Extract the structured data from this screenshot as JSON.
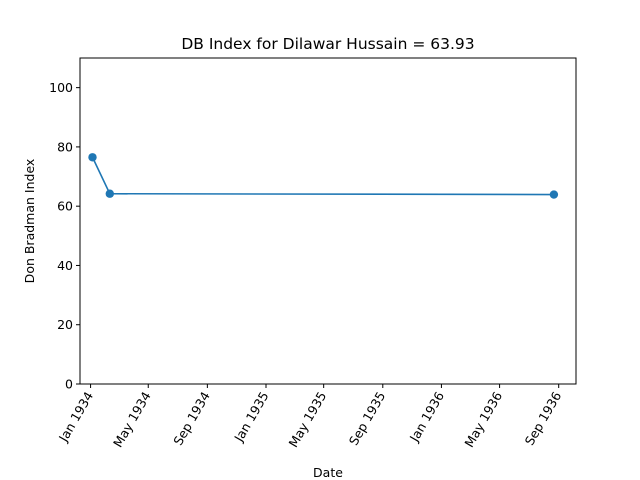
{
  "chart_data": {
    "type": "line",
    "title": "DB Index for Dilawar Hussain = 63.93",
    "xlabel": "Date",
    "ylabel": "Don Bradman Index",
    "x_type": "date",
    "xlim": [
      "1933-12-10",
      "1936-10-07"
    ],
    "ylim": [
      0,
      110
    ],
    "x_ticks": [
      {
        "date": "1934-01-01",
        "label": "Jan 1934"
      },
      {
        "date": "1934-05-01",
        "label": "May 1934"
      },
      {
        "date": "1934-09-01",
        "label": "Sep 1934"
      },
      {
        "date": "1935-01-01",
        "label": "Jan 1935"
      },
      {
        "date": "1935-05-01",
        "label": "May 1935"
      },
      {
        "date": "1935-09-01",
        "label": "Sep 1935"
      },
      {
        "date": "1936-01-01",
        "label": "Jan 1936"
      },
      {
        "date": "1936-05-01",
        "label": "May 1936"
      },
      {
        "date": "1936-09-01",
        "label": "Sep 1936"
      }
    ],
    "y_ticks": [
      0,
      20,
      40,
      60,
      80,
      100
    ],
    "series": [
      {
        "color": "#1f77b4",
        "marker": "circle",
        "x": [
          "1934-01-05",
          "1934-02-10",
          "1936-08-22"
        ],
        "y": [
          76.5,
          64.2,
          63.93
        ]
      }
    ],
    "grid": false,
    "legend": "none"
  }
}
